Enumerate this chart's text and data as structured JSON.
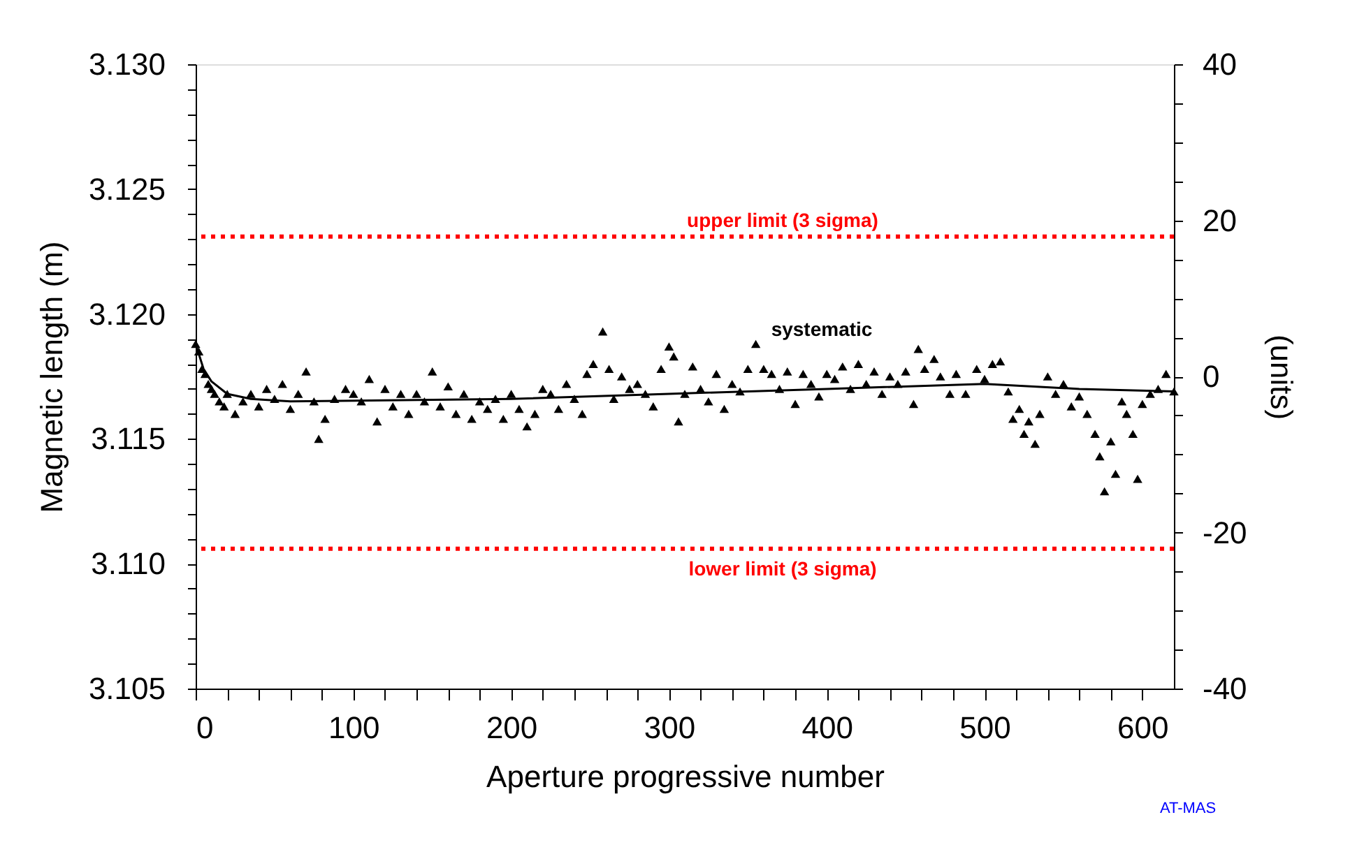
{
  "chart_data": {
    "type": "scatter",
    "xlabel": "Aperture progressive number",
    "ylabel": "Magnetic length (m)",
    "y2label": "(units)",
    "xlim": [
      0,
      620
    ],
    "ylim": [
      3.105,
      3.13
    ],
    "y2lim": [
      -40,
      40
    ],
    "xticks": [
      0,
      {
        "value": 20,
        "label": null
      },
      {
        "value": 40,
        "label": null
      },
      {
        "value": 60,
        "label": null
      },
      {
        "value": 80,
        "label": null
      },
      100,
      {
        "value": 120,
        "label": null
      },
      {
        "value": 140,
        "label": null
      },
      {
        "value": 160,
        "label": null
      },
      {
        "value": 180,
        "label": null
      },
      200,
      {
        "value": 220,
        "label": null
      },
      {
        "value": 240,
        "label": null
      },
      {
        "value": 260,
        "label": null
      },
      {
        "value": 280,
        "label": null
      },
      300,
      {
        "value": 320,
        "label": null
      },
      {
        "value": 340,
        "label": null
      },
      {
        "value": 360,
        "label": null
      },
      {
        "value": 380,
        "label": null
      },
      400,
      {
        "value": 420,
        "label": null
      },
      {
        "value": 440,
        "label": null
      },
      {
        "value": 460,
        "label": null
      },
      {
        "value": 480,
        "label": null
      },
      500,
      {
        "value": 520,
        "label": null
      },
      {
        "value": 540,
        "label": null
      },
      {
        "value": 560,
        "label": null
      },
      {
        "value": 580,
        "label": null
      },
      600
    ],
    "yticks": [
      {
        "value": 3.105,
        "label": "3.105"
      },
      {
        "value": 3.106,
        "label": null
      },
      {
        "value": 3.107,
        "label": null
      },
      {
        "value": 3.108,
        "label": null
      },
      {
        "value": 3.109,
        "label": null
      },
      {
        "value": 3.11,
        "label": "3.110"
      },
      {
        "value": 3.111,
        "label": null
      },
      {
        "value": 3.112,
        "label": null
      },
      {
        "value": 3.113,
        "label": null
      },
      {
        "value": 3.114,
        "label": null
      },
      {
        "value": 3.115,
        "label": "3.115"
      },
      {
        "value": 3.116,
        "label": null
      },
      {
        "value": 3.117,
        "label": null
      },
      {
        "value": 3.118,
        "label": null
      },
      {
        "value": 3.119,
        "label": null
      },
      {
        "value": 3.12,
        "label": "3.120"
      },
      {
        "value": 3.121,
        "label": null
      },
      {
        "value": 3.122,
        "label": null
      },
      {
        "value": 3.123,
        "label": null
      },
      {
        "value": 3.124,
        "label": null
      },
      {
        "value": 3.125,
        "label": "3.125"
      },
      {
        "value": 3.126,
        "label": null
      },
      {
        "value": 3.127,
        "label": null
      },
      {
        "value": 3.128,
        "label": null
      },
      {
        "value": 3.129,
        "label": null
      },
      {
        "value": 3.13,
        "label": "3.130"
      }
    ],
    "y2ticks": [
      -40,
      {
        "value": -35,
        "label": null
      },
      {
        "value": -30,
        "label": null
      },
      {
        "value": -25,
        "label": null
      },
      -20,
      {
        "value": -15,
        "label": null
      },
      {
        "value": -10,
        "label": null
      },
      {
        "value": -5,
        "label": null
      },
      0,
      {
        "value": 5,
        "label": null
      },
      {
        "value": 10,
        "label": null
      },
      {
        "value": 15,
        "label": null
      },
      20,
      {
        "value": 25,
        "label": null
      },
      {
        "value": 30,
        "label": null
      },
      {
        "value": 35,
        "label": null
      },
      40
    ],
    "grid": false,
    "ref_lines": [
      {
        "axis": "y",
        "value": 3.1231,
        "label": "upper limit (3 sigma)",
        "color": "#ff0000",
        "line_style": "dotted"
      },
      {
        "axis": "y",
        "value": 3.1106,
        "label": "lower limit (3 sigma)",
        "color": "#ff0000",
        "line_style": "dotted"
      }
    ],
    "annotations": [
      "systematic",
      "AT-MAS"
    ],
    "series": [
      {
        "type": "scatter",
        "color": "#000000",
        "marker": "triangle",
        "x": [
          0,
          2,
          4,
          6,
          8,
          10,
          12,
          15,
          18,
          20,
          25,
          30,
          35,
          40,
          45,
          50,
          55,
          60,
          65,
          70,
          75,
          78,
          82,
          88,
          95,
          100,
          105,
          110,
          115,
          120,
          125,
          130,
          135,
          140,
          145,
          150,
          155,
          160,
          165,
          170,
          175,
          180,
          185,
          190,
          195,
          200,
          205,
          210,
          215,
          220,
          225,
          230,
          235,
          240,
          245,
          248,
          252,
          258,
          262,
          265,
          270,
          275,
          280,
          285,
          290,
          295,
          300,
          303,
          306,
          310,
          315,
          320,
          325,
          330,
          335,
          340,
          345,
          350,
          355,
          360,
          365,
          370,
          375,
          380,
          385,
          390,
          395,
          400,
          405,
          410,
          415,
          420,
          425,
          430,
          435,
          440,
          445,
          450,
          455,
          458,
          462,
          468,
          472,
          478,
          482,
          488,
          495,
          500,
          505,
          510,
          515,
          518,
          522,
          525,
          528,
          532,
          535,
          540,
          545,
          550,
          555,
          560,
          565,
          570,
          573,
          576,
          580,
          583,
          587,
          590,
          594,
          597,
          600,
          605,
          610,
          615,
          620
        ],
        "values": [
          3.1188,
          3.1185,
          3.1178,
          3.1176,
          3.1172,
          3.117,
          3.1168,
          3.1165,
          3.1163,
          3.1168,
          3.116,
          3.1165,
          3.1168,
          3.1163,
          3.117,
          3.1166,
          3.1172,
          3.1162,
          3.1168,
          3.1177,
          3.1165,
          3.115,
          3.1158,
          3.1166,
          3.117,
          3.1168,
          3.1165,
          3.1174,
          3.1157,
          3.117,
          3.1163,
          3.1168,
          3.116,
          3.1168,
          3.1165,
          3.1177,
          3.1163,
          3.1171,
          3.116,
          3.1168,
          3.1158,
          3.1165,
          3.1162,
          3.1166,
          3.1158,
          3.1168,
          3.1162,
          3.1155,
          3.116,
          3.117,
          3.1168,
          3.1162,
          3.1172,
          3.1166,
          3.116,
          3.1176,
          3.118,
          3.1193,
          3.1178,
          3.1166,
          3.1175,
          3.117,
          3.1172,
          3.1168,
          3.1163,
          3.1178,
          3.1187,
          3.1183,
          3.1157,
          3.1168,
          3.1179,
          3.117,
          3.1165,
          3.1176,
          3.1162,
          3.1172,
          3.1169,
          3.1178,
          3.1188,
          3.1178,
          3.1176,
          3.117,
          3.1177,
          3.1164,
          3.1176,
          3.1172,
          3.1167,
          3.1176,
          3.1174,
          3.1179,
          3.117,
          3.118,
          3.1172,
          3.1177,
          3.1168,
          3.1175,
          3.1172,
          3.1177,
          3.1164,
          3.1186,
          3.1178,
          3.1182,
          3.1175,
          3.1168,
          3.1176,
          3.1168,
          3.1178,
          3.1174,
          3.118,
          3.1181,
          3.1169,
          3.1158,
          3.1162,
          3.1152,
          3.1157,
          3.1148,
          3.116,
          3.1175,
          3.1168,
          3.1172,
          3.1163,
          3.1167,
          3.116,
          3.1152,
          3.1143,
          3.1129,
          3.1149,
          3.1136,
          3.1165,
          3.116,
          3.1152,
          3.1134,
          3.1164,
          3.1168,
          3.117,
          3.1176,
          3.1169
        ]
      },
      {
        "type": "line",
        "color": "#000000",
        "marker": "none",
        "line_style": "solid",
        "x": [
          0,
          5,
          10,
          20,
          35,
          60,
          200,
          300,
          400,
          500,
          560,
          620
        ],
        "values": [
          3.1188,
          3.1178,
          3.1173,
          3.1168,
          3.1166,
          3.1165,
          3.1166,
          3.1168,
          3.117,
          3.1172,
          3.117,
          3.1169
        ]
      }
    ]
  }
}
